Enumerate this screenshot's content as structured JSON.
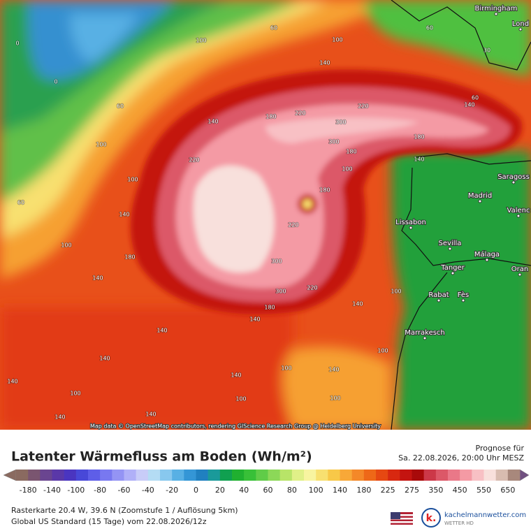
{
  "map": {
    "cities": [
      "Birmingham",
      "Lond",
      "Saragoss",
      "Madrid",
      "Valenc",
      "Lissabon",
      "Sevilla",
      "Málaga",
      "Tanger",
      "Oran",
      "Rabat",
      "Fès",
      "Marrakesch"
    ],
    "contour_labels": [
      "0",
      "0",
      "60",
      "100",
      "60",
      "100",
      "140",
      "180",
      "60",
      "100",
      "30",
      "60",
      "140",
      "100",
      "60",
      "100",
      "140",
      "180",
      "220",
      "220",
      "300",
      "140",
      "180",
      "220",
      "300",
      "180",
      "100",
      "140",
      "180",
      "220",
      "300",
      "300",
      "220",
      "180",
      "140",
      "100",
      "140",
      "100",
      "140",
      "140",
      "140",
      "140",
      "100",
      "100",
      "100",
      "140",
      "140",
      "100",
      "140",
      "140"
    ],
    "attribution": "Map data © OpenStreetMap contributors, rendering GIScience Research Group @ Heidelberg University"
  },
  "legend": {
    "title": "Latenter Wärmefluss am Boden (Wh/m²)",
    "forecast_label": "Prognose für",
    "forecast_time": "Sa. 22.08.2026, 20:00 Uhr MESZ",
    "ticks": [
      "-180",
      "-140",
      "-100",
      "-80",
      "-60",
      "-40",
      "-20",
      "0",
      "20",
      "40",
      "60",
      "80",
      "100",
      "140",
      "180",
      "225",
      "275",
      "350",
      "450",
      "550",
      "650"
    ],
    "colors": [
      "#8a6a60",
      "#7a5570",
      "#6a4590",
      "#5a38a8",
      "#4a35c0",
      "#4848d8",
      "#5e5ee8",
      "#7878f0",
      "#9494f4",
      "#b0b0f8",
      "#c8ccf8",
      "#b4dcf4",
      "#88c8ee",
      "#58b0e4",
      "#3496d6",
      "#2080c0",
      "#1a9a9a",
      "#10a050",
      "#20b030",
      "#38c038",
      "#60cc48",
      "#8cd858",
      "#b8e468",
      "#e0f088",
      "#f8f4a0",
      "#f8e070",
      "#f8c848",
      "#f8a838",
      "#f48828",
      "#ee6818",
      "#e64812",
      "#d82810",
      "#c41410",
      "#a80a0a",
      "#cc3848",
      "#dc5868",
      "#ea7888",
      "#f49aa4",
      "#f8c0c4",
      "#f8e0dc",
      "#d8bcb0",
      "#a8887c"
    ],
    "info_line1": "Rasterkarte 20.4 W, 39.6 N (Zoomstufe 1 / Auflösung 5km)",
    "info_line2": "Global US Standard (15 Tage) vom 22.08.2026/12z",
    "brand": "kachelmannwetter.com",
    "brand_sub": "WETTER HD"
  }
}
